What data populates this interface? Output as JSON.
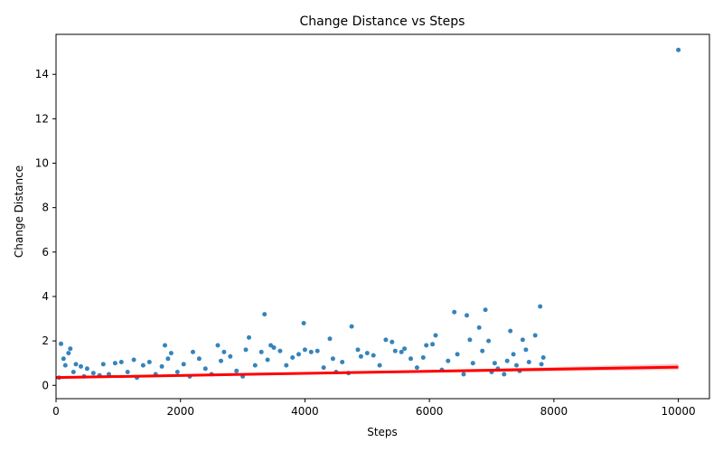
{
  "chart_data": {
    "type": "scatter",
    "title": "Change Distance vs Steps",
    "xlabel": "Steps",
    "ylabel": "Change Distance",
    "xlim": [
      0,
      10500
    ],
    "ylim": [
      -0.6,
      15.8
    ],
    "xticks": [
      0,
      2000,
      4000,
      6000,
      8000,
      10000
    ],
    "yticks": [
      0,
      2,
      4,
      6,
      8,
      10,
      12,
      14
    ],
    "grid": false,
    "legend": "none",
    "marker_color": "#1f77b4",
    "fit_color": "#ff0000",
    "band_color": "#f4b6b6",
    "fit_line": {
      "x": [
        0,
        10000
      ],
      "y": [
        0.35,
        0.82
      ]
    },
    "fit_band": {
      "x": [
        0,
        5000,
        10000
      ],
      "lower": [
        0.29,
        0.53,
        0.7
      ],
      "upper": [
        0.41,
        0.61,
        0.97
      ]
    },
    "points": [
      [
        50,
        0.35
      ],
      [
        80,
        1.87
      ],
      [
        120,
        1.2
      ],
      [
        150,
        0.9
      ],
      [
        200,
        1.45
      ],
      [
        230,
        1.65
      ],
      [
        280,
        0.6
      ],
      [
        320,
        0.95
      ],
      [
        400,
        0.85
      ],
      [
        450,
        0.4
      ],
      [
        500,
        0.75
      ],
      [
        600,
        0.55
      ],
      [
        700,
        0.45
      ],
      [
        760,
        0.95
      ],
      [
        850,
        0.5
      ],
      [
        950,
        1.0
      ],
      [
        1050,
        1.05
      ],
      [
        1150,
        0.6
      ],
      [
        1250,
        1.15
      ],
      [
        1300,
        0.35
      ],
      [
        1400,
        0.9
      ],
      [
        1500,
        1.05
      ],
      [
        1600,
        0.5
      ],
      [
        1700,
        0.85
      ],
      [
        1750,
        1.8
      ],
      [
        1800,
        1.2
      ],
      [
        1850,
        1.45
      ],
      [
        1950,
        0.6
      ],
      [
        2050,
        0.95
      ],
      [
        2150,
        0.4
      ],
      [
        2200,
        1.5
      ],
      [
        2300,
        1.2
      ],
      [
        2400,
        0.75
      ],
      [
        2500,
        0.5
      ],
      [
        2600,
        1.8
      ],
      [
        2650,
        1.1
      ],
      [
        2700,
        1.5
      ],
      [
        2800,
        1.3
      ],
      [
        2900,
        0.65
      ],
      [
        3000,
        0.4
      ],
      [
        3050,
        1.6
      ],
      [
        3100,
        2.15
      ],
      [
        3200,
        0.9
      ],
      [
        3300,
        1.5
      ],
      [
        3350,
        3.2
      ],
      [
        3400,
        1.15
      ],
      [
        3450,
        1.8
      ],
      [
        3500,
        1.7
      ],
      [
        3600,
        1.55
      ],
      [
        3700,
        0.9
      ],
      [
        3800,
        1.25
      ],
      [
        3900,
        1.4
      ],
      [
        3980,
        2.8
      ],
      [
        4000,
        1.6
      ],
      [
        4100,
        1.5
      ],
      [
        4200,
        1.55
      ],
      [
        4300,
        0.8
      ],
      [
        4400,
        2.1
      ],
      [
        4450,
        1.2
      ],
      [
        4500,
        0.6
      ],
      [
        4600,
        1.05
      ],
      [
        4700,
        0.55
      ],
      [
        4750,
        2.65
      ],
      [
        4850,
        1.6
      ],
      [
        4900,
        1.3
      ],
      [
        5000,
        1.45
      ],
      [
        5100,
        1.35
      ],
      [
        5200,
        0.9
      ],
      [
        5300,
        2.05
      ],
      [
        5400,
        1.95
      ],
      [
        5450,
        1.55
      ],
      [
        5550,
        1.5
      ],
      [
        5600,
        1.65
      ],
      [
        5700,
        1.2
      ],
      [
        5800,
        0.8
      ],
      [
        5900,
        1.25
      ],
      [
        5950,
        1.8
      ],
      [
        6050,
        1.85
      ],
      [
        6100,
        2.25
      ],
      [
        6200,
        0.7
      ],
      [
        6300,
        1.1
      ],
      [
        6400,
        3.3
      ],
      [
        6450,
        1.4
      ],
      [
        6550,
        0.5
      ],
      [
        6600,
        3.15
      ],
      [
        6650,
        2.05
      ],
      [
        6700,
        1.0
      ],
      [
        6800,
        2.6
      ],
      [
        6850,
        1.55
      ],
      [
        6900,
        3.4
      ],
      [
        6950,
        2.0
      ],
      [
        7000,
        0.6
      ],
      [
        7050,
        1.0
      ],
      [
        7100,
        0.75
      ],
      [
        7200,
        0.5
      ],
      [
        7250,
        1.1
      ],
      [
        7300,
        2.45
      ],
      [
        7350,
        1.4
      ],
      [
        7400,
        0.9
      ],
      [
        7450,
        0.65
      ],
      [
        7500,
        2.05
      ],
      [
        7550,
        1.6
      ],
      [
        7600,
        1.05
      ],
      [
        7700,
        2.25
      ],
      [
        7780,
        3.55
      ],
      [
        7800,
        0.95
      ],
      [
        7830,
        1.25
      ],
      [
        10000,
        15.1
      ]
    ]
  }
}
